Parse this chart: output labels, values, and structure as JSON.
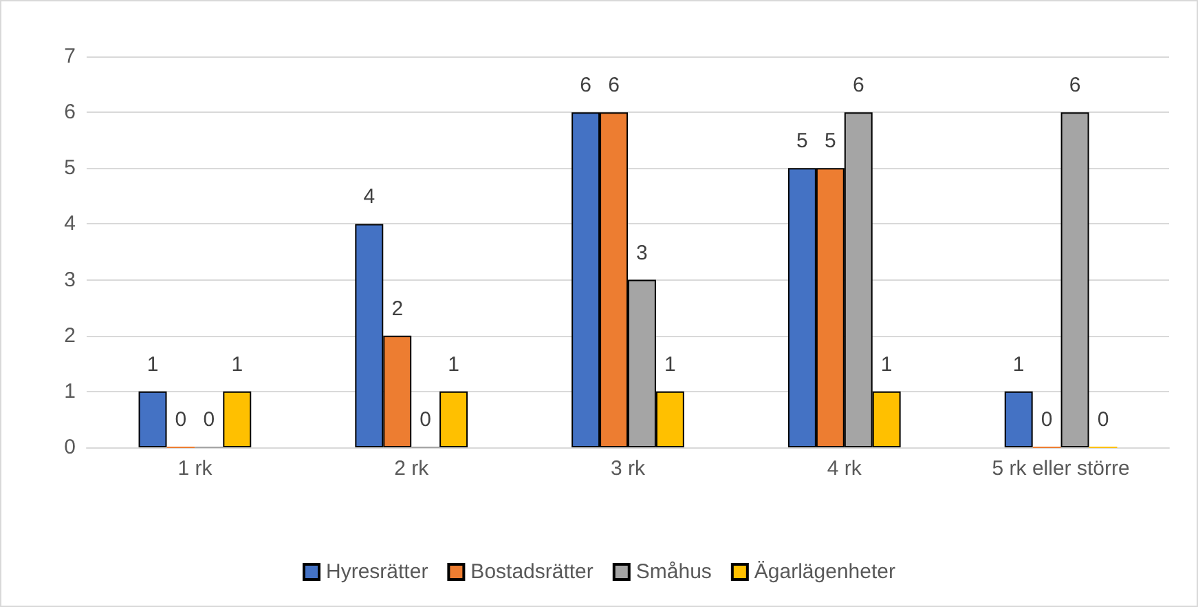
{
  "chart_data": {
    "type": "bar",
    "categories": [
      "1 rk",
      "2 rk",
      "3 rk",
      "4 rk",
      "5 rk eller större"
    ],
    "series": [
      {
        "name": "Hyresrätter",
        "color": "#4472c4",
        "values": [
          1,
          4,
          6,
          5,
          1
        ]
      },
      {
        "name": "Bostadsrätter",
        "color": "#ed7d31",
        "values": [
          0,
          2,
          6,
          5,
          0
        ]
      },
      {
        "name": "Småhus",
        "color": "#a5a5a5",
        "values": [
          0,
          0,
          3,
          6,
          6
        ]
      },
      {
        "name": "Ägarlägenheter",
        "color": "#ffc000",
        "values": [
          1,
          1,
          1,
          1,
          0
        ]
      }
    ],
    "ylim": [
      0,
      7
    ],
    "yticks": [
      0,
      1,
      2,
      3,
      4,
      5,
      6,
      7
    ],
    "grid": "y",
    "legend": "bottom",
    "data_labels": true
  }
}
